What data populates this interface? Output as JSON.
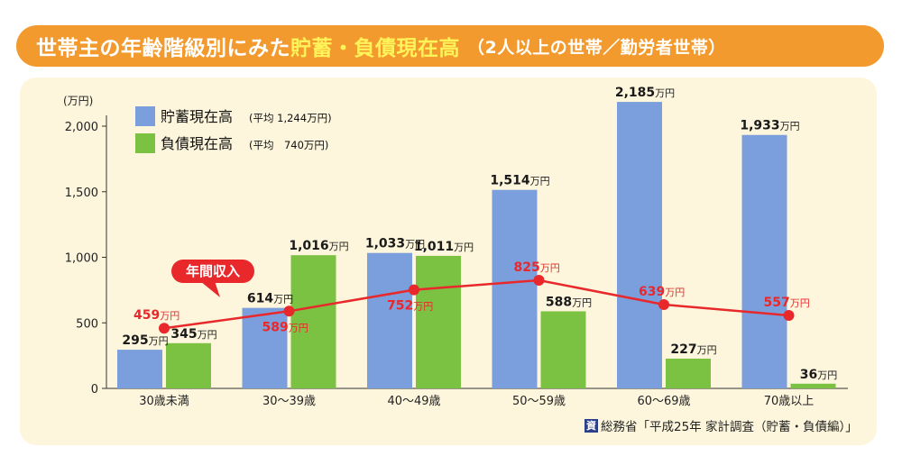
{
  "title": {
    "part1": "世帯主の年齢階級別にみた",
    "part2": "貯蓄・負債現在高",
    "part3": "（2人以上の世帯／勤労者世帯）"
  },
  "chart_data": {
    "type": "bar",
    "categories": [
      "30歳未満",
      "30～39歳",
      "40～49歳",
      "50～59歳",
      "60～69歳",
      "70歳以上"
    ],
    "unit_label": "(万円)",
    "value_suffix": "万円",
    "ylim": [
      0,
      2200
    ],
    "yticks": [
      0,
      500,
      1000,
      1500,
      2000
    ],
    "ytick_labels": [
      "0",
      "500",
      "1,000",
      "1,500",
      "2,000"
    ],
    "grid": false,
    "legend_position": "top-left",
    "series": [
      {
        "name": "貯蓄現在高",
        "legend_note": "(平均 1,244万円)",
        "color": "#7b9fdc",
        "values": [
          295,
          614,
          1033,
          1514,
          2185,
          1933
        ]
      },
      {
        "name": "負債現在高",
        "legend_note": "(平均　740万円)",
        "color": "#7cc242",
        "values": [
          345,
          1016,
          1011,
          588,
          227,
          36
        ]
      }
    ],
    "line": {
      "name": "年間収入",
      "color": "#e8282b",
      "values": [
        459,
        589,
        752,
        825,
        639,
        557
      ]
    }
  },
  "source": {
    "mark": "資",
    "text": "総務省「平成25年 家計調査（貯蓄・負債編）」"
  }
}
